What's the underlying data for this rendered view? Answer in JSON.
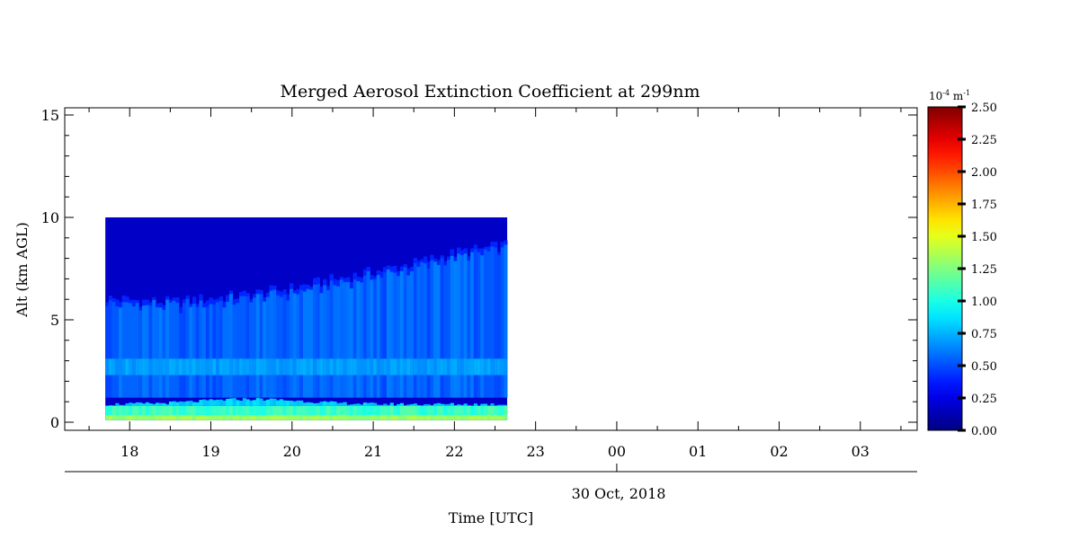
{
  "chart_data": {
    "type": "heatmap",
    "title": "Merged Aerosol Extinction Coefficient at 299nm",
    "ylabel": "Alt (km AGL)",
    "xlabel": "Time [UTC]",
    "date_label": "30 Oct, 2018",
    "ylim": [
      0,
      15.5
    ],
    "yticks": [
      0,
      5,
      10,
      15
    ],
    "xticks": [
      {
        "hour": 18,
        "label": "18"
      },
      {
        "hour": 19,
        "label": "19"
      },
      {
        "hour": 20,
        "label": "20"
      },
      {
        "hour": 21,
        "label": "21"
      },
      {
        "hour": 22,
        "label": "22"
      },
      {
        "hour": 23,
        "label": "23"
      },
      {
        "hour": 24,
        "label": "00"
      },
      {
        "hour": 25,
        "label": "01"
      },
      {
        "hour": 26,
        "label": "02"
      },
      {
        "hour": 27,
        "label": "03"
      }
    ],
    "xlim_hours": [
      17.2,
      27.7
    ],
    "data_extent": {
      "time_start_hour": 17.7,
      "time_end_hour": 22.65,
      "alt_min_km": 0.1,
      "alt_max_km": 10
    },
    "aerosol_top_km": [
      {
        "hour": 17.7,
        "alt": 6.0
      },
      {
        "hour": 18.5,
        "alt": 5.8
      },
      {
        "hour": 19.5,
        "alt": 6.2
      },
      {
        "hour": 20.0,
        "alt": 6.5
      },
      {
        "hour": 20.5,
        "alt": 6.9
      },
      {
        "hour": 21.0,
        "alt": 7.3
      },
      {
        "hour": 21.5,
        "alt": 7.7
      },
      {
        "hour": 22.0,
        "alt": 8.2
      },
      {
        "hour": 22.65,
        "alt": 8.6
      }
    ],
    "colorbar": {
      "unit_text": "10",
      "unit_exp": "-4",
      "unit_rest": " m",
      "unit_rest_exp": "-1",
      "min": 0,
      "max": 2.5,
      "ticks": [
        "0.00",
        "0.25",
        "0.50",
        "0.75",
        "1.00",
        "1.25",
        "1.50",
        "1.75",
        "2.00",
        "2.25",
        "2.50"
      ],
      "colormap": "jet"
    }
  }
}
